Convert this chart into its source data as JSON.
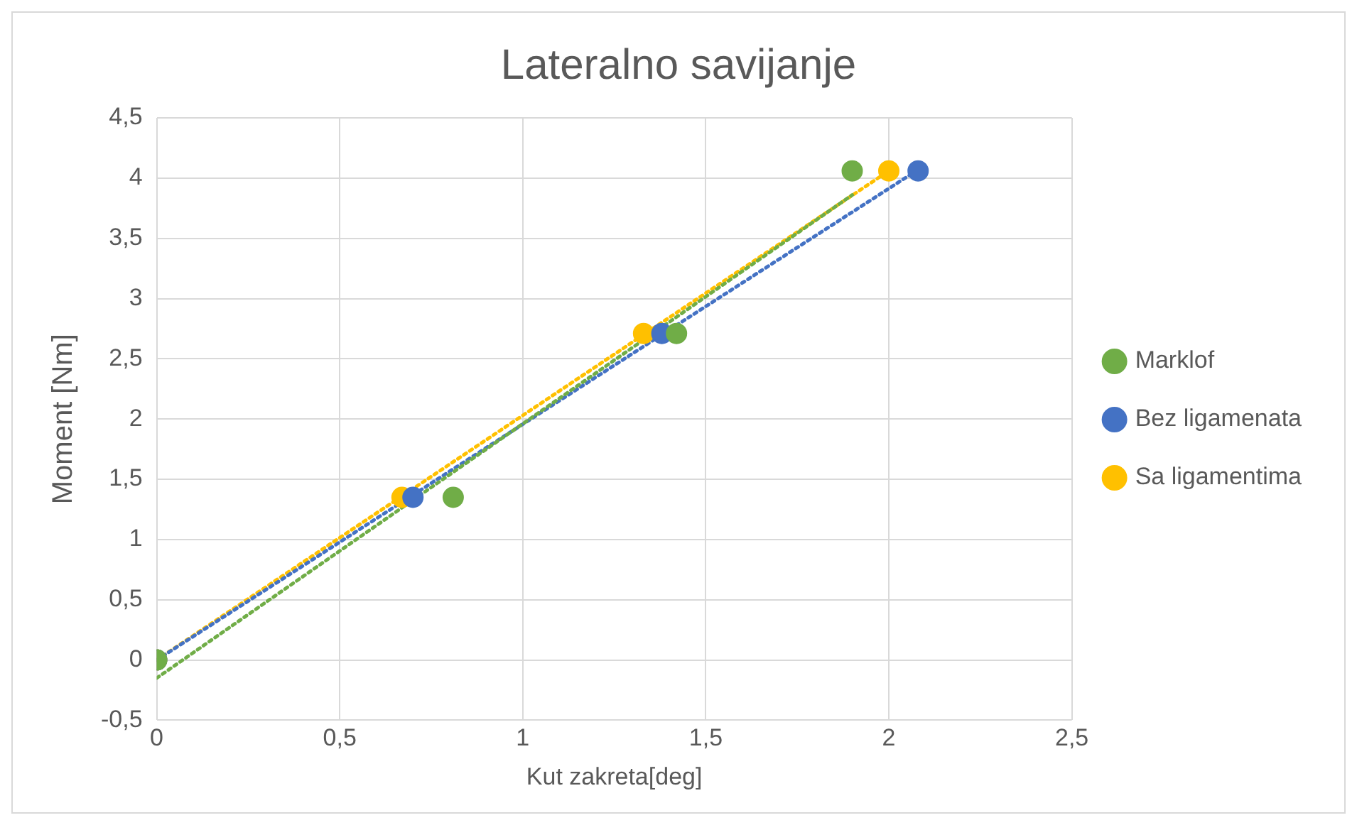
{
  "chart_data": {
    "type": "scatter",
    "title": "Lateralno savijanje",
    "xlabel": "Kut zakreta[deg]",
    "ylabel": "Moment [Nm]",
    "xlim": [
      0,
      2.5
    ],
    "xticks": [
      0,
      {
        "value": 0.5,
        "label": "0,5"
      },
      1,
      {
        "value": 1.5,
        "label": "1,5"
      },
      2,
      {
        "value": 2.5,
        "label": "2,5"
      }
    ],
    "ylim": [
      -0.5,
      4.5
    ],
    "yticks": [
      {
        "value": -0.5,
        "label": "-0,5"
      },
      0,
      {
        "value": 0.5,
        "label": "0,5"
      },
      1,
      {
        "value": 1.5,
        "label": "1,5"
      },
      2,
      {
        "value": 2.5,
        "label": "2,5"
      },
      3,
      {
        "value": 3.5,
        "label": "3,5"
      },
      4,
      {
        "value": 4.5,
        "label": "4,5"
      }
    ],
    "grid": true,
    "legend": "right",
    "marker": "circle",
    "series": [
      {
        "name": "Marklof",
        "color": "#70ad47",
        "x": [
          0,
          0.81,
          1.42,
          1.9
        ],
        "values": [
          0,
          1.35,
          2.71,
          4.06
        ]
      },
      {
        "name": "Bez ligamenata",
        "color": "#4472c4",
        "x": [
          0,
          0.7,
          1.38,
          2.08
        ],
        "values": [
          0,
          1.35,
          2.71,
          4.06
        ]
      },
      {
        "name": "Sa ligamentima",
        "color": "#ffc000",
        "x": [
          0,
          0.67,
          1.33,
          2.0
        ],
        "values": [
          0,
          1.35,
          2.71,
          4.06
        ]
      },
      {
        "type": "line",
        "color": "#70ad47",
        "line_style": "dotted",
        "marker": "none",
        "x": [
          0,
          1.9
        ],
        "values": [
          -0.15,
          3.86
        ]
      },
      {
        "type": "line",
        "color": "#4472c4",
        "line_style": "dotted",
        "marker": "none",
        "x": [
          0,
          2.08
        ],
        "values": [
          0,
          4.07
        ]
      },
      {
        "type": "line",
        "color": "#ffc000",
        "line_style": "dotted",
        "marker": "none",
        "x": [
          0,
          2.0
        ],
        "values": [
          0,
          4.06
        ]
      }
    ]
  }
}
